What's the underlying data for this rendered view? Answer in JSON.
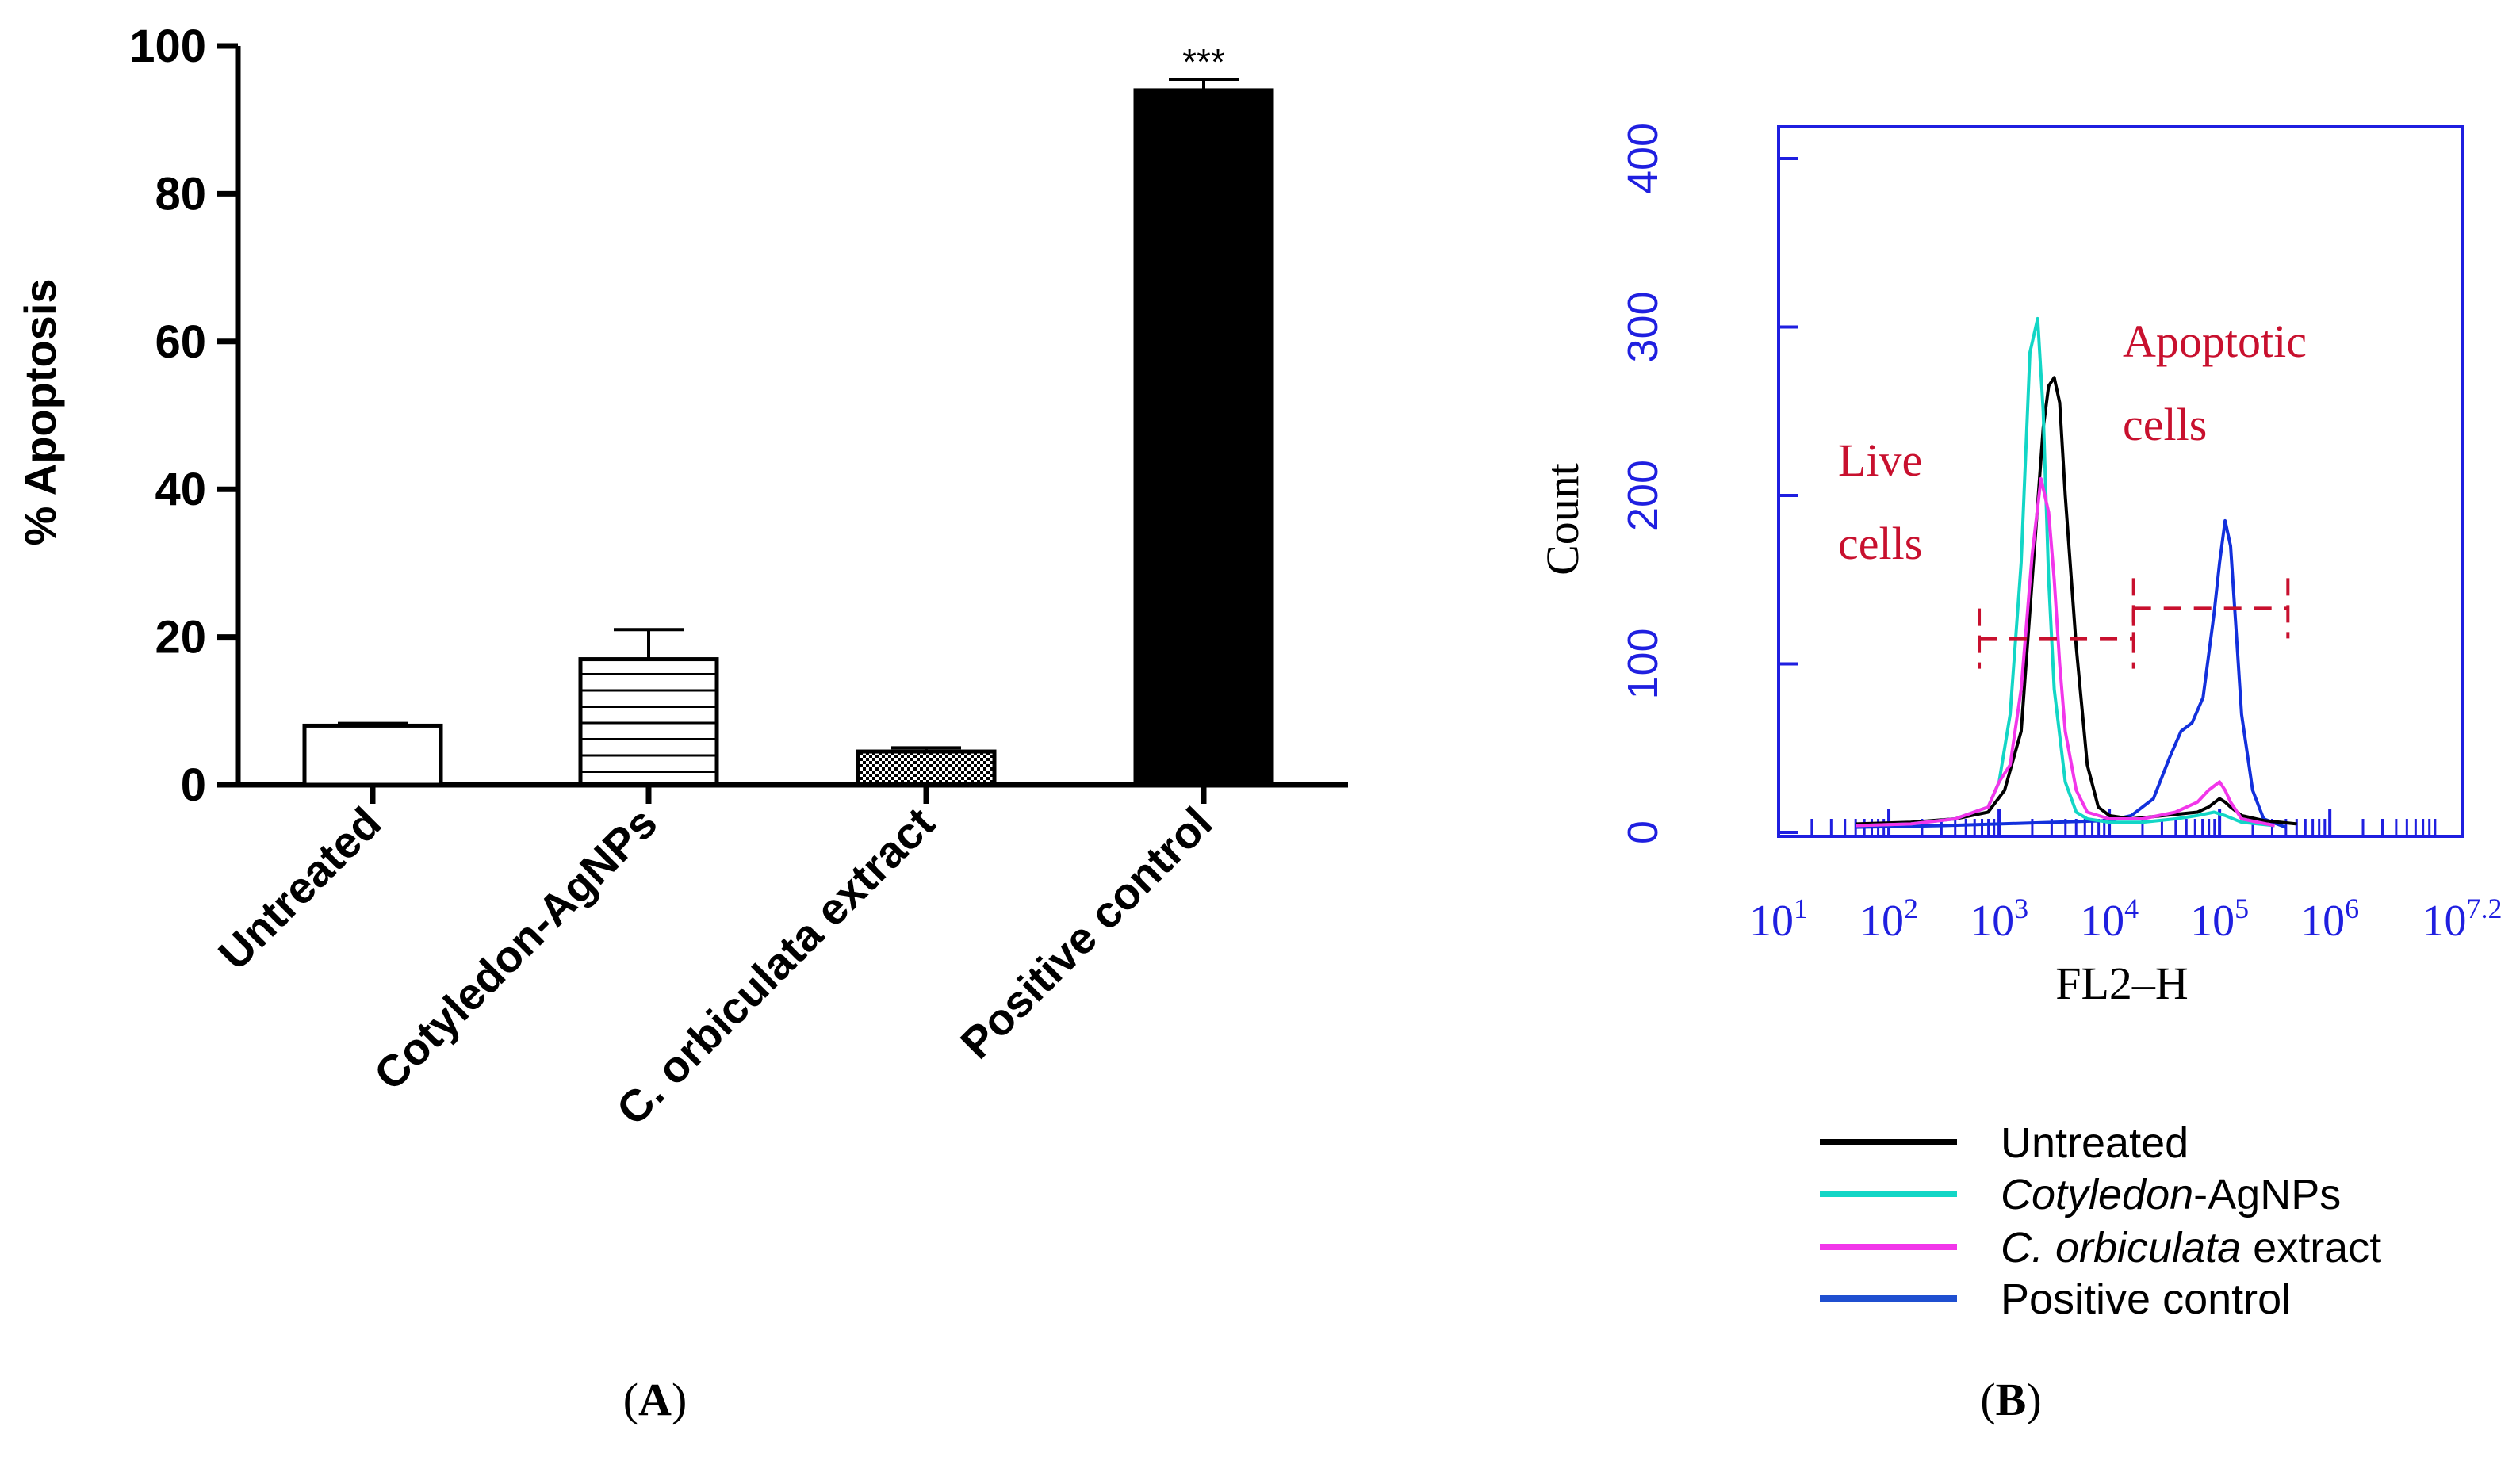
{
  "panels": {
    "a": "A",
    "b": "B"
  },
  "colors": {
    "axis_black": "#000000",
    "flow_axis": "#1f1fe0",
    "gate": "#c8102e",
    "untreated": "#000000",
    "cotyledon": "#12d6c6",
    "c_orbiculata": "#f236ea",
    "positive": "#1230dc"
  },
  "chart_data": [
    {
      "type": "bar",
      "panel": "A",
      "ylabel": "% Apoptosis",
      "xlabel": "",
      "ylim": [
        0,
        100
      ],
      "yticks": [
        "0",
        "20",
        "40",
        "60",
        "80",
        "100"
      ],
      "categories": [
        "Untreated",
        "Cotyledon-AgNPs",
        "C. orbiculata extract",
        "Positive control"
      ],
      "values": [
        8,
        17,
        4.5,
        94
      ],
      "errors": [
        0.3,
        4,
        0.5,
        1.5
      ],
      "fills": [
        "open",
        "horizontal-stripes",
        "dotted",
        "solid-black"
      ],
      "annotation": {
        "category": "Positive control",
        "text": "***"
      }
    },
    {
      "type": "line",
      "panel": "B",
      "xlabel": "FL2–H",
      "ylabel": "Count",
      "xscale": "log",
      "xlim": [
        1,
        7.2
      ],
      "ylim": [
        0,
        400
      ],
      "yticks": [
        "0",
        "100",
        "200",
        "300",
        "400"
      ],
      "xtick_base": "10",
      "xtick_exponents": [
        "1",
        "2",
        "3",
        "4",
        "5",
        "6",
        "7.2"
      ],
      "gate_labels": [
        {
          "line1": "Live",
          "line2": "cells"
        },
        {
          "line1": "Apoptotic",
          "line2": "cells"
        }
      ],
      "gates": [
        {
          "x_start": 2.82,
          "x_end": 4.22,
          "y": 115
        },
        {
          "x_start": 4.22,
          "x_end": 5.62,
          "y": 133
        }
      ],
      "series": [
        {
          "name": "Untreated",
          "log10_x": [
            1.7,
            2.2,
            2.6,
            2.9,
            3.05,
            3.2,
            3.3,
            3.4,
            3.45,
            3.5,
            3.55,
            3.6,
            3.7,
            3.8,
            3.9,
            4.0,
            4.2,
            4.5,
            4.8,
            4.9,
            5.0,
            5.05,
            5.1,
            5.2,
            5.4,
            5.7
          ],
          "count": [
            5,
            6,
            8,
            12,
            25,
            60,
            150,
            240,
            265,
            270,
            255,
            200,
            110,
            40,
            15,
            10,
            8,
            10,
            12,
            15,
            20,
            18,
            15,
            10,
            7,
            5
          ]
        },
        {
          "name": "Cotyledon-AgNPs",
          "log10_x": [
            1.7,
            2.2,
            2.6,
            2.9,
            3.0,
            3.1,
            3.2,
            3.28,
            3.35,
            3.4,
            3.45,
            3.5,
            3.6,
            3.7,
            3.8,
            4.0,
            4.3,
            4.6,
            4.8,
            4.95,
            5.05,
            5.2,
            5.5
          ],
          "count": [
            4,
            5,
            8,
            15,
            30,
            70,
            160,
            285,
            305,
            250,
            150,
            85,
            30,
            12,
            8,
            6,
            6,
            8,
            10,
            12,
            10,
            6,
            4
          ]
        },
        {
          "name": "C. orbiculata extract",
          "log10_x": [
            1.7,
            2.2,
            2.6,
            2.9,
            3.0,
            3.1,
            3.2,
            3.3,
            3.38,
            3.45,
            3.5,
            3.55,
            3.6,
            3.7,
            3.8,
            4.0,
            4.3,
            4.6,
            4.8,
            4.9,
            5.0,
            5.05,
            5.1,
            5.2,
            5.5
          ],
          "count": [
            4,
            5,
            8,
            15,
            30,
            40,
            85,
            165,
            210,
            190,
            150,
            100,
            60,
            25,
            12,
            8,
            8,
            12,
            18,
            25,
            30,
            25,
            18,
            8,
            4
          ]
        },
        {
          "name": "Positive control",
          "log10_x": [
            1.7,
            2.5,
            3.0,
            3.5,
            4.0,
            4.2,
            4.4,
            4.55,
            4.65,
            4.75,
            4.85,
            4.95,
            5.0,
            5.05,
            5.1,
            5.15,
            5.2,
            5.3,
            5.4,
            5.6
          ],
          "count": [
            3,
            4,
            5,
            6,
            7,
            10,
            20,
            45,
            60,
            65,
            80,
            130,
            160,
            185,
            170,
            120,
            70,
            25,
            8,
            3
          ]
        }
      ]
    }
  ]
}
